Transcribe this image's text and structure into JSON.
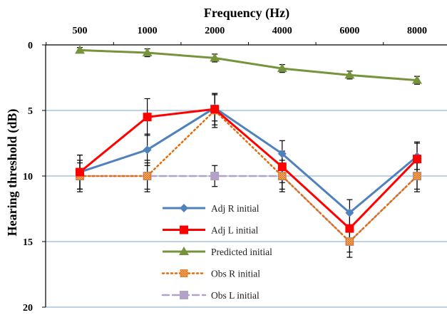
{
  "chart_data": {
    "type": "line",
    "xlabel": "Frequency (Hz)",
    "ylabel": "Hearing threshold (dB)",
    "categories": [
      "500",
      "1000",
      "2000",
      "4000",
      "6000",
      "8000"
    ],
    "ylim": [
      0,
      20
    ],
    "y_ticks": [
      "0",
      "5",
      "10",
      "15",
      "20"
    ],
    "y_inverted": true,
    "x_axis_position": "top",
    "grid": "horizontal",
    "legend_position": "inside-bottom-center",
    "series": [
      {
        "name": "Adj R initial",
        "color": "#4f81bd",
        "line": "solid",
        "marker": "diamond",
        "values": [
          9.7,
          8.0,
          4.8,
          8.3,
          12.8,
          8.5
        ],
        "error": [
          1.3,
          1.2,
          1.0,
          1.0,
          1.0,
          1.0
        ]
      },
      {
        "name": "Adj L initial",
        "color": "#ff0000",
        "line": "solid",
        "marker": "square",
        "values": [
          9.7,
          5.5,
          4.9,
          9.3,
          14.0,
          8.7
        ],
        "error": [
          1.3,
          1.4,
          1.2,
          1.2,
          1.1,
          1.3
        ]
      },
      {
        "name": "Predicted initial",
        "color": "#77933c",
        "line": "solid",
        "marker": "triangle",
        "values": [
          0.4,
          0.6,
          1.0,
          1.8,
          2.3,
          2.7
        ],
        "error": [
          0.2,
          0.3,
          0.3,
          0.3,
          0.3,
          0.3
        ]
      },
      {
        "name": "Obs R initial",
        "color": "#e36c09",
        "line": "dotted",
        "marker": "square-hatched",
        "values": [
          10.0,
          10.0,
          5.0,
          10.0,
          15.0,
          10.0
        ],
        "error": [
          1.2,
          1.2,
          1.3,
          1.2,
          1.2,
          1.2
        ]
      },
      {
        "name": "Obs L initial",
        "color": "#b3a2c7",
        "line": "dashed",
        "marker": "square",
        "values": [
          10.0,
          10.0,
          10.0,
          10.0,
          15.0,
          10.0
        ],
        "error": [
          1.0,
          1.0,
          0.8,
          1.0,
          0.8,
          1.0
        ]
      }
    ]
  }
}
